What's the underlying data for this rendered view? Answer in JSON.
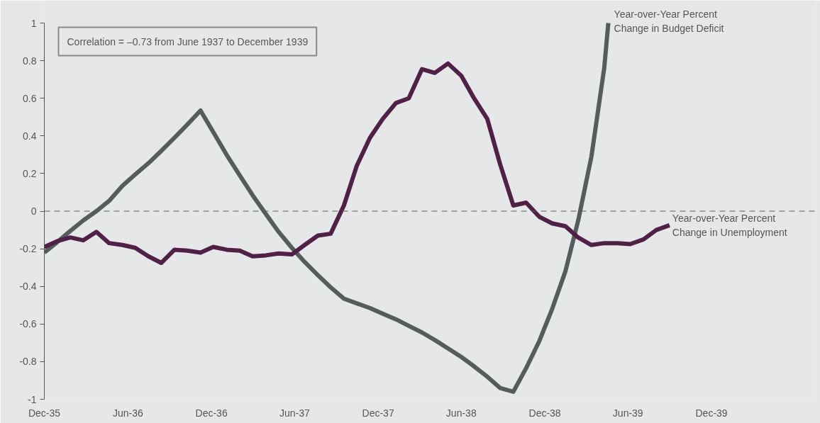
{
  "chart_data": {
    "type": "line",
    "x": [
      "1935-12-01",
      "1935-12-29",
      "1936-01-27",
      "1936-02-24",
      "1936-03-24",
      "1936-04-21",
      "1936-05-20",
      "1936-06-17",
      "1936-07-16",
      "1936-08-13",
      "1936-09-11",
      "1936-10-09",
      "1936-11-07",
      "1936-12-05",
      "1937-01-03",
      "1937-02-01",
      "1937-03-01",
      "1937-03-30",
      "1937-04-27",
      "1937-05-26",
      "1937-06-23",
      "1937-07-22",
      "1937-08-19",
      "1937-09-17",
      "1937-10-15",
      "1937-11-13",
      "1937-12-11",
      "1938-01-09",
      "1938-02-06",
      "1938-03-07",
      "1938-04-04",
      "1938-05-03",
      "1938-06-01",
      "1938-06-29",
      "1938-07-28",
      "1938-08-25",
      "1938-09-23",
      "1938-10-21",
      "1938-11-19",
      "1938-12-17",
      "1939-01-15",
      "1939-02-12",
      "1939-03-13",
      "1939-04-10",
      "1939-05-09",
      "1939-06-06",
      "1939-07-05",
      "1939-08-02",
      "1939-08-31"
    ],
    "series": [
      {
        "name": "Year-over-Year Percent\nChange in Budget Deficit",
        "color": "#555c5c",
        "x": [
          "1935-12-01",
          "1935-12-29",
          "1936-01-27",
          "1936-02-24",
          "1936-03-24",
          "1936-04-21",
          "1936-05-20",
          "1936-06-17",
          "1936-07-16",
          "1936-08-13",
          "1936-09-11",
          "1936-10-09",
          "1936-11-07",
          "1936-12-05",
          "1937-01-03",
          "1937-02-01",
          "1937-03-01",
          "1937-03-30",
          "1937-04-27",
          "1937-05-26",
          "1937-06-23",
          "1937-07-22",
          "1937-08-19",
          "1937-09-17",
          "1937-10-15",
          "1937-11-13",
          "1937-12-11",
          "1938-01-09",
          "1938-02-06",
          "1938-03-07",
          "1938-04-04",
          "1938-05-03",
          "1938-06-01",
          "1938-06-29",
          "1938-07-28",
          "1938-08-25",
          "1938-09-23",
          "1938-10-21",
          "1938-11-19",
          "1938-12-17",
          "1939-01-15",
          "1939-02-12",
          "1939-03-13",
          "1939-04-10",
          "1939-04-19"
        ],
        "values": [
          -0.22,
          -0.165,
          -0.105,
          -0.05,
          0.0,
          0.055,
          0.135,
          0.195,
          0.255,
          0.32,
          0.39,
          0.46,
          0.535,
          0.42,
          0.3,
          0.19,
          0.085,
          -0.015,
          -0.11,
          -0.195,
          -0.27,
          -0.34,
          -0.405,
          -0.465,
          -0.49,
          -0.515,
          -0.545,
          -0.575,
          -0.61,
          -0.645,
          -0.685,
          -0.73,
          -0.775,
          -0.825,
          -0.88,
          -0.94,
          -0.96,
          -0.835,
          -0.69,
          -0.52,
          -0.32,
          -0.05,
          0.29,
          0.76,
          1.0
        ]
      },
      {
        "name": "Year-over-Year Percent\nChange in Unemployment",
        "color": "#4f2147",
        "values": [
          -0.19,
          -0.16,
          -0.14,
          -0.155,
          -0.11,
          -0.17,
          -0.18,
          -0.195,
          -0.24,
          -0.275,
          -0.205,
          -0.21,
          -0.22,
          -0.19,
          -0.205,
          -0.21,
          -0.24,
          -0.235,
          -0.225,
          -0.23,
          -0.18,
          -0.13,
          -0.12,
          0.03,
          0.24,
          0.39,
          0.49,
          0.575,
          0.6,
          0.755,
          0.735,
          0.785,
          0.72,
          0.6,
          0.49,
          0.25,
          0.03,
          0.045,
          -0.03,
          -0.065,
          -0.08,
          -0.14,
          -0.18,
          -0.17,
          -0.17,
          -0.175,
          -0.15,
          -0.1,
          -0.075
        ]
      }
    ],
    "xlim": [
      "1935-12-01",
      "1940-07-17"
    ],
    "xticks": [
      {
        "value": "1935-12-01",
        "label": "Dec-35"
      },
      {
        "value": "1936-06-01",
        "label": "Jun-36"
      },
      {
        "value": "1936-12-01",
        "label": "Dec-36"
      },
      {
        "value": "1937-06-01",
        "label": "Jun-37"
      },
      {
        "value": "1937-12-01",
        "label": "Dec-37"
      },
      {
        "value": "1938-06-01",
        "label": "Jun-38"
      },
      {
        "value": "1938-12-01",
        "label": "Dec-38"
      },
      {
        "value": "1939-06-01",
        "label": "Jun-39"
      },
      {
        "value": "1939-12-01",
        "label": "Dec-39"
      }
    ],
    "ylim": [
      -1,
      1
    ],
    "yticks": [
      -1,
      -0.8,
      -0.6,
      -0.4,
      -0.2,
      0,
      0.2,
      0.4,
      0.6,
      0.8,
      1
    ],
    "ref_lines": [
      {
        "axis": "y",
        "value": 0,
        "label": null,
        "color": "#555c5c",
        "line_style": "dashed"
      }
    ],
    "annotations": [
      "Correlation = –0.73 from June 1937 to December 1939"
    ],
    "legend": false,
    "marker": "none",
    "line_style": "solid"
  }
}
